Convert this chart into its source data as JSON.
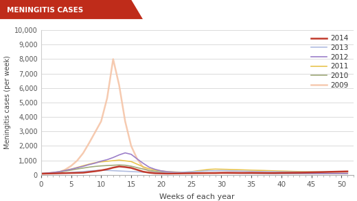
{
  "title": "MENINGITIS CASES",
  "title_bg_color": "#bf2c1a",
  "title_text_color": "#ffffff",
  "xlabel": "Weeks of each year",
  "ylabel": "Meningitis cases (per week)",
  "xlim": [
    0,
    52
  ],
  "ylim": [
    0,
    10000
  ],
  "yticks": [
    0,
    1000,
    2000,
    3000,
    4000,
    5000,
    6000,
    7000,
    8000,
    9000,
    10000
  ],
  "xticks": [
    0,
    5,
    10,
    15,
    20,
    25,
    30,
    35,
    40,
    45,
    50
  ],
  "background_color": "#ffffff",
  "grid_color": "#cccccc",
  "series": [
    {
      "label": "2014",
      "color": "#c0392b",
      "linewidth": 1.8,
      "alpha": 1.0,
      "weeks": [
        0,
        1,
        2,
        3,
        4,
        5,
        6,
        7,
        8,
        9,
        10,
        11,
        12,
        13,
        14,
        15,
        16,
        17,
        18,
        19,
        20,
        21,
        22,
        23,
        24,
        25,
        26,
        27,
        28,
        29,
        30,
        31,
        32,
        33,
        34,
        35,
        36,
        37,
        38,
        39,
        40,
        41,
        42,
        43,
        44,
        45,
        46,
        47,
        48,
        49,
        50,
        51
      ],
      "values": [
        80,
        90,
        100,
        110,
        120,
        130,
        140,
        150,
        200,
        250,
        310,
        390,
        500,
        580,
        540,
        480,
        350,
        220,
        150,
        110,
        100,
        90,
        95,
        100,
        110,
        115,
        120,
        125,
        130,
        130,
        145,
        150,
        145,
        140,
        140,
        145,
        140,
        135,
        130,
        130,
        140,
        145,
        150,
        155,
        165,
        175,
        185,
        195,
        210,
        220,
        230,
        240
      ]
    },
    {
      "label": "2013",
      "color": "#b0bce0",
      "linewidth": 1.2,
      "alpha": 1.0,
      "weeks": [
        0,
        1,
        2,
        3,
        4,
        5,
        6,
        7,
        8,
        9,
        10,
        11,
        12,
        13,
        14,
        15,
        16,
        17,
        18,
        19,
        20,
        21,
        22,
        23,
        24,
        25,
        26,
        27,
        28,
        29,
        30,
        31,
        32,
        33,
        34,
        35,
        36,
        37,
        38,
        39,
        40,
        41,
        42,
        43,
        44,
        45,
        46,
        47,
        48,
        49,
        50,
        51
      ],
      "values": [
        80,
        90,
        100,
        120,
        140,
        170,
        200,
        230,
        270,
        300,
        320,
        310,
        290,
        270,
        250,
        230,
        210,
        190,
        175,
        165,
        160,
        155,
        165,
        175,
        200,
        220,
        240,
        265,
        290,
        280,
        300,
        290,
        275,
        265,
        255,
        245,
        235,
        230,
        225,
        220,
        215,
        210,
        205,
        200,
        200,
        200,
        200,
        205,
        210,
        215,
        220,
        225
      ]
    },
    {
      "label": "2012",
      "color": "#9b7ec8",
      "linewidth": 1.2,
      "alpha": 1.0,
      "weeks": [
        0,
        1,
        2,
        3,
        4,
        5,
        6,
        7,
        8,
        9,
        10,
        11,
        12,
        13,
        14,
        15,
        16,
        17,
        18,
        19,
        20,
        21,
        22,
        23,
        24,
        25,
        26,
        27,
        28,
        29,
        30,
        31,
        32,
        33,
        34,
        35,
        36,
        37,
        38,
        39,
        40,
        41,
        42,
        43,
        44,
        45,
        46,
        47,
        48,
        49,
        50,
        51
      ],
      "values": [
        100,
        130,
        170,
        220,
        300,
        390,
        490,
        590,
        710,
        810,
        950,
        1050,
        1200,
        1380,
        1520,
        1420,
        1100,
        800,
        530,
        380,
        280,
        220,
        195,
        175,
        160,
        150,
        145,
        140,
        135,
        130,
        125,
        120,
        115,
        112,
        110,
        108,
        106,
        104,
        102,
        100,
        100,
        100,
        100,
        100,
        100,
        100,
        100,
        100,
        100,
        100,
        100,
        100
      ]
    },
    {
      "label": "2011",
      "color": "#e8c44e",
      "linewidth": 1.2,
      "alpha": 1.0,
      "weeks": [
        0,
        1,
        2,
        3,
        4,
        5,
        6,
        7,
        8,
        9,
        10,
        11,
        12,
        13,
        14,
        15,
        16,
        17,
        18,
        19,
        20,
        21,
        22,
        23,
        24,
        25,
        26,
        27,
        28,
        29,
        30,
        31,
        32,
        33,
        34,
        35,
        36,
        37,
        38,
        39,
        40,
        41,
        42,
        43,
        44,
        45,
        46,
        47,
        48,
        49,
        50,
        51
      ],
      "values": [
        90,
        120,
        160,
        220,
        310,
        400,
        510,
        630,
        740,
        840,
        900,
        940,
        980,
        1020,
        970,
        920,
        740,
        560,
        420,
        330,
        270,
        230,
        210,
        195,
        185,
        220,
        280,
        330,
        380,
        400,
        390,
        380,
        365,
        355,
        340,
        325,
        315,
        305,
        290,
        275,
        265,
        255,
        240,
        230,
        220,
        215,
        210,
        210,
        210,
        215,
        220,
        230
      ]
    },
    {
      "label": "2010",
      "color": "#a0aa7a",
      "linewidth": 1.2,
      "alpha": 1.0,
      "weeks": [
        0,
        1,
        2,
        3,
        4,
        5,
        6,
        7,
        8,
        9,
        10,
        11,
        12,
        13,
        14,
        15,
        16,
        17,
        18,
        19,
        20,
        21,
        22,
        23,
        24,
        25,
        26,
        27,
        28,
        29,
        30,
        31,
        32,
        33,
        34,
        35,
        36,
        37,
        38,
        39,
        40,
        41,
        42,
        43,
        44,
        45,
        46,
        47,
        48,
        49,
        50,
        51
      ],
      "values": [
        80,
        105,
        135,
        185,
        255,
        330,
        405,
        470,
        535,
        585,
        620,
        645,
        665,
        685,
        665,
        600,
        500,
        400,
        305,
        250,
        205,
        180,
        170,
        160,
        155,
        150,
        148,
        145,
        142,
        140,
        136,
        132,
        128,
        124,
        120,
        116,
        112,
        110,
        108,
        105,
        103,
        101,
        100,
        100,
        100,
        100,
        100,
        100,
        100,
        100,
        100,
        100
      ]
    },
    {
      "label": "2009",
      "color": "#f5c5a8",
      "linewidth": 1.8,
      "alpha": 0.9,
      "weeks": [
        0,
        1,
        2,
        3,
        4,
        5,
        6,
        7,
        8,
        9,
        10,
        11,
        12,
        13,
        14,
        15,
        16,
        17,
        18,
        19,
        20,
        21,
        22,
        23,
        24,
        25,
        26,
        27,
        28,
        29,
        30,
        31,
        32,
        33,
        34,
        35,
        36,
        37,
        38,
        39,
        40,
        41,
        42,
        43,
        44,
        45,
        46,
        47,
        48,
        49,
        50,
        51
      ],
      "values": [
        80,
        100,
        130,
        190,
        360,
        620,
        980,
        1500,
        2200,
        2950,
        3700,
        5300,
        8000,
        6200,
        3700,
        2000,
        1100,
        520,
        260,
        170,
        130,
        115,
        108,
        105,
        102,
        100,
        100,
        100,
        100,
        100,
        100,
        100,
        100,
        100,
        100,
        100,
        100,
        100,
        100,
        100,
        100,
        100,
        100,
        100,
        100,
        100,
        100,
        100,
        100,
        100,
        100,
        100
      ]
    }
  ]
}
